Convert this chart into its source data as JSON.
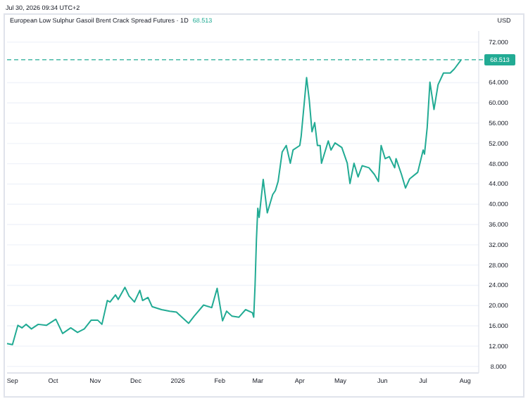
{
  "chart_data": {
    "type": "line",
    "title": "European Low Sulphur Gasoil Brent Crack Spread Futures · 1D",
    "subtitle": "Jul 30, 2026 09:34 UTC+2",
    "ylabel": "USD",
    "annotations": [
      "68.513"
    ],
    "x": [
      "2025-08-28",
      "2025-09-01",
      "2025-09-05",
      "2025-09-08",
      "2025-09-11",
      "2025-09-15",
      "2025-09-20",
      "2025-09-26",
      "2025-10-03",
      "2025-10-08",
      "2025-10-14",
      "2025-10-19",
      "2025-10-24",
      "2025-10-29",
      "2025-11-03",
      "2025-11-06",
      "2025-11-10",
      "2025-11-12",
      "2025-11-16",
      "2025-11-18",
      "2025-11-23",
      "2025-11-26",
      "2025-11-30",
      "2025-12-04",
      "2025-12-06",
      "2025-12-10",
      "2025-12-13",
      "2025-12-20",
      "2025-12-26",
      "2025-12-31",
      "2026-01-04",
      "2026-01-09",
      "2026-01-13",
      "2026-01-20",
      "2026-01-26",
      "2026-01-30",
      "2026-02-03",
      "2026-02-06",
      "2026-02-10",
      "2026-02-15",
      "2026-02-20",
      "2026-02-25",
      "2026-02-26",
      "2026-02-27",
      "2026-02-28",
      "2026-03-01",
      "2026-03-02",
      "2026-03-05",
      "2026-03-08",
      "2026-03-12",
      "2026-03-14",
      "2026-03-16",
      "2026-03-19",
      "2026-03-22",
      "2026-03-25",
      "2026-03-27",
      "2026-04-01",
      "2026-04-02",
      "2026-04-06",
      "2026-04-08",
      "2026-04-10",
      "2026-04-12",
      "2026-04-14",
      "2026-04-16",
      "2026-04-17",
      "2026-04-22",
      "2026-04-24",
      "2026-04-27",
      "2026-05-02",
      "2026-05-06",
      "2026-05-08",
      "2026-05-11",
      "2026-05-14",
      "2026-05-17",
      "2026-05-22",
      "2026-05-26",
      "2026-05-29",
      "2026-05-31",
      "2026-06-03",
      "2026-06-06",
      "2026-06-10",
      "2026-06-11",
      "2026-06-15",
      "2026-06-18",
      "2026-06-21",
      "2026-06-27",
      "2026-07-01",
      "2026-07-02",
      "2026-07-04",
      "2026-07-06",
      "2026-07-09",
      "2026-07-12",
      "2026-07-16",
      "2026-07-21",
      "2026-07-24",
      "2026-07-29"
    ],
    "series": [
      {
        "color": "#22ab94",
        "values": [
          12.5,
          12.3,
          16.1,
          15.6,
          16.3,
          15.4,
          16.3,
          16.1,
          17.3,
          14.5,
          15.6,
          14.7,
          15.4,
          17.1,
          17.1,
          16.3,
          21.0,
          20.7,
          22.1,
          21.2,
          23.6,
          21.9,
          20.7,
          23.0,
          21.0,
          21.6,
          19.8,
          19.2,
          18.9,
          18.7,
          17.7,
          16.5,
          17.9,
          20.1,
          19.6,
          23.4,
          17.0,
          18.9,
          17.9,
          17.7,
          19.2,
          18.6,
          17.7,
          24.1,
          33.0,
          39.2,
          37.4,
          44.9,
          38.3,
          41.9,
          42.7,
          44.5,
          50.3,
          51.6,
          48.1,
          50.7,
          51.6,
          53.4,
          65.0,
          60.5,
          54.3,
          56.1,
          51.6,
          51.6,
          48.1,
          52.5,
          50.7,
          52.1,
          51.2,
          48.1,
          44.1,
          48.1,
          45.4,
          47.6,
          47.2,
          45.9,
          44.5,
          51.6,
          49.0,
          49.4,
          47.2,
          49.0,
          45.9,
          43.2,
          45.0,
          46.3,
          50.7,
          49.9,
          55.2,
          64.1,
          58.7,
          63.6,
          65.9,
          65.9,
          66.7,
          68.5
        ]
      }
    ],
    "xlim": [
      "2025-08-28",
      "2026-08-11"
    ],
    "xticks": [
      {
        "value": "2025-09-01",
        "label": "Sep"
      },
      {
        "value": "2025-10-01",
        "label": "Oct"
      },
      {
        "value": "2025-11-01",
        "label": "Nov"
      },
      {
        "value": "2025-12-01",
        "label": "Dec"
      },
      {
        "value": "2026-01-01",
        "label": "2026"
      },
      {
        "value": "2026-02-01",
        "label": "Feb"
      },
      {
        "value": "2026-03-01",
        "label": "Mar"
      },
      {
        "value": "2026-04-01",
        "label": "Apr"
      },
      {
        "value": "2026-05-01",
        "label": "May"
      },
      {
        "value": "2026-06-01",
        "label": "Jun"
      },
      {
        "value": "2026-07-01",
        "label": "Jul"
      },
      {
        "value": "2026-08-01",
        "label": "Aug"
      }
    ],
    "ylim": [
      6.7,
      74.2
    ],
    "yticks": [
      {
        "value": 8,
        "label": "8.000"
      },
      {
        "value": 12,
        "label": "12.000"
      },
      {
        "value": 16,
        "label": "16.000"
      },
      {
        "value": 20,
        "label": "20.000"
      },
      {
        "value": 24,
        "label": "24.000"
      },
      {
        "value": 28,
        "label": "28.000"
      },
      {
        "value": 32,
        "label": "32.000"
      },
      {
        "value": 36,
        "label": "36.000"
      },
      {
        "value": 40,
        "label": "40.000"
      },
      {
        "value": 44,
        "label": "44.000"
      },
      {
        "value": 48,
        "label": "48.000"
      },
      {
        "value": 52,
        "label": "52.000"
      },
      {
        "value": 56,
        "label": "56.000"
      },
      {
        "value": 60,
        "label": "60.000"
      },
      {
        "value": 64,
        "label": "64.000"
      },
      {
        "value": 72,
        "label": "72.000"
      }
    ],
    "ref_lines": [
      {
        "axis": "y",
        "value": 68.513,
        "label": "68.513",
        "color": "#22ab94",
        "line_style": "dashed"
      }
    ],
    "grid": "y",
    "line_style": "solid",
    "marker": "none"
  }
}
